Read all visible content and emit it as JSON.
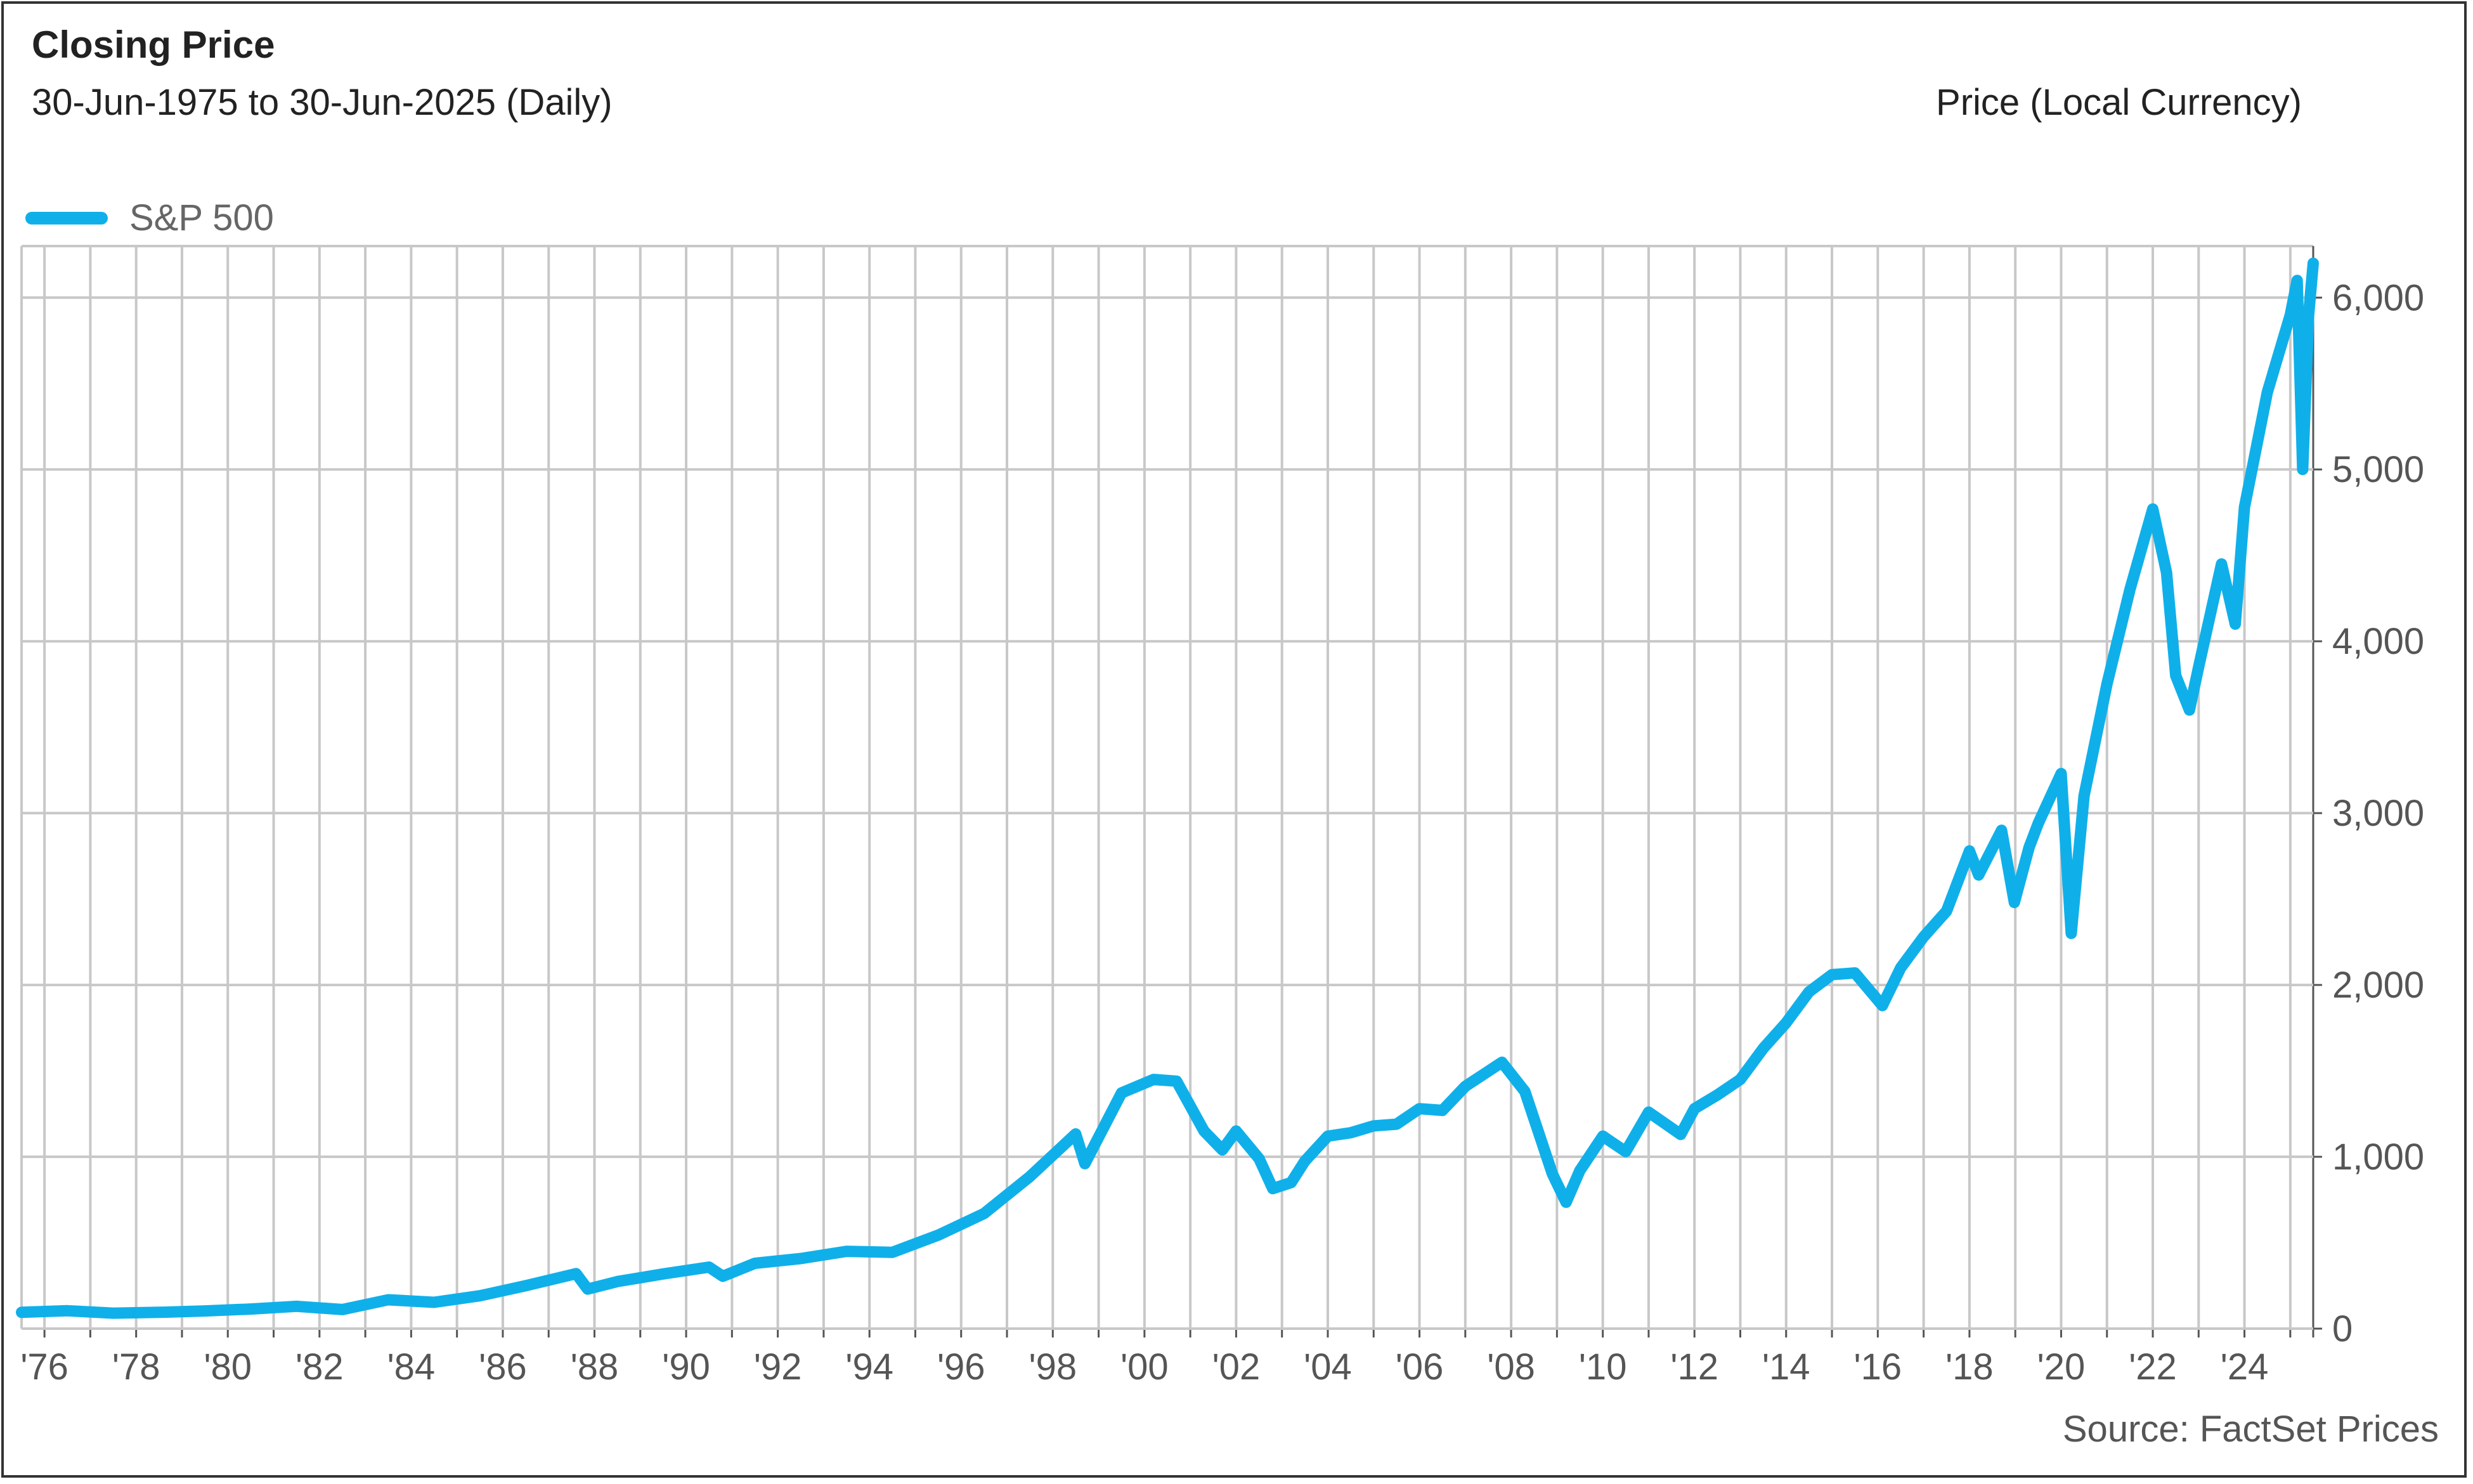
{
  "header": {
    "title": "Closing Price",
    "subtitle": "30-Jun-1975 to 30-Jun-2025 (Daily)",
    "y_unit": "Price (Local Currency)"
  },
  "legend": {
    "label": "S&P 500"
  },
  "footer": {
    "source": "Source: FactSet Prices"
  },
  "colors": {
    "series": "#0fb0ea",
    "grid": "#c8c8c8",
    "axis": "#555555"
  },
  "chart_data": {
    "type": "line",
    "title": "Closing Price",
    "subtitle": "30-Jun-1975 to 30-Jun-2025 (Daily)",
    "xlabel": "",
    "ylabel": "Price (Local Currency)",
    "xlim": [
      1975.5,
      2025.5
    ],
    "ylim": [
      0,
      6300
    ],
    "grid": true,
    "y_axis_side": "right",
    "legend_position": "top-left",
    "x_ticks": [
      {
        "year": 1976,
        "label": "'76"
      },
      {
        "year": 1978,
        "label": "'78"
      },
      {
        "year": 1980,
        "label": "'80"
      },
      {
        "year": 1982,
        "label": "'82"
      },
      {
        "year": 1984,
        "label": "'84"
      },
      {
        "year": 1986,
        "label": "'86"
      },
      {
        "year": 1988,
        "label": "'88"
      },
      {
        "year": 1990,
        "label": "'90"
      },
      {
        "year": 1992,
        "label": "'92"
      },
      {
        "year": 1994,
        "label": "'94"
      },
      {
        "year": 1996,
        "label": "'96"
      },
      {
        "year": 1998,
        "label": "'98"
      },
      {
        "year": 2000,
        "label": "'00"
      },
      {
        "year": 2002,
        "label": "'02"
      },
      {
        "year": 2004,
        "label": "'04"
      },
      {
        "year": 2006,
        "label": "'06"
      },
      {
        "year": 2008,
        "label": "'08"
      },
      {
        "year": 2010,
        "label": "'10"
      },
      {
        "year": 2012,
        "label": "'12"
      },
      {
        "year": 2014,
        "label": "'14"
      },
      {
        "year": 2016,
        "label": "'16"
      },
      {
        "year": 2018,
        "label": "'18"
      },
      {
        "year": 2020,
        "label": "'20"
      },
      {
        "year": 2022,
        "label": "'22"
      },
      {
        "year": 2024,
        "label": "'24"
      }
    ],
    "y_ticks": [
      {
        "value": 0,
        "label": "0"
      },
      {
        "value": 1000,
        "label": "1,000"
      },
      {
        "value": 2000,
        "label": "2,000"
      },
      {
        "value": 3000,
        "label": "3,000"
      },
      {
        "value": 4000,
        "label": "4,000"
      },
      {
        "value": 5000,
        "label": "5,000"
      },
      {
        "value": 6000,
        "label": "6,000"
      }
    ],
    "series": [
      {
        "name": "S&P 500",
        "x": [
          1975.5,
          1976.5,
          1977.5,
          1978.5,
          1979.5,
          1980.5,
          1981.5,
          1982.5,
          1983.5,
          1984.5,
          1985.5,
          1986.5,
          1987.6,
          1987.85,
          1988.5,
          1989.5,
          1990.5,
          1990.8,
          1991.5,
          1992.5,
          1993.5,
          1994.5,
          1995.5,
          1996.5,
          1997.5,
          1998.5,
          1998.7,
          1999.5,
          2000.2,
          2000.7,
          2001.3,
          2001.7,
          2002.0,
          2002.5,
          2002.8,
          2003.2,
          2003.5,
          2004.0,
          2004.5,
          2005.0,
          2005.5,
          2006.0,
          2006.5,
          2007.0,
          2007.8,
          2008.3,
          2008.9,
          2009.2,
          2009.5,
          2010.0,
          2010.5,
          2011.0,
          2011.7,
          2012.0,
          2012.5,
          2013.0,
          2013.5,
          2014.0,
          2014.5,
          2015.0,
          2015.5,
          2016.1,
          2016.5,
          2017.0,
          2017.5,
          2018.0,
          2018.2,
          2018.7,
          2018.98,
          2019.3,
          2019.5,
          2020.0,
          2020.22,
          2020.5,
          2021.0,
          2021.5,
          2022.0,
          2022.3,
          2022.5,
          2022.8,
          2023.0,
          2023.5,
          2023.8,
          2024.0,
          2024.5,
          2025.0,
          2025.15,
          2025.27,
          2025.4,
          2025.5
        ],
        "values": [
          95,
          104,
          90,
          95,
          103,
          114,
          130,
          111,
          168,
          153,
          191,
          250,
          320,
          230,
          274,
          318,
          358,
          305,
          380,
          408,
          450,
          444,
          544,
          670,
          885,
          1133,
          960,
          1372,
          1450,
          1440,
          1150,
          1040,
          1150,
          989,
          815,
          850,
          975,
          1120,
          1140,
          1180,
          1190,
          1280,
          1270,
          1410,
          1550,
          1380,
          900,
          735,
          920,
          1120,
          1030,
          1260,
          1130,
          1280,
          1360,
          1450,
          1630,
          1780,
          1960,
          2060,
          2070,
          1880,
          2100,
          2280,
          2430,
          2780,
          2640,
          2900,
          2480,
          2800,
          2940,
          3230,
          2300,
          3100,
          3750,
          4300,
          4770,
          4400,
          3800,
          3600,
          3850,
          4450,
          4100,
          4780,
          5450,
          5900,
          6100,
          5000,
          5900,
          6200
        ]
      }
    ]
  }
}
